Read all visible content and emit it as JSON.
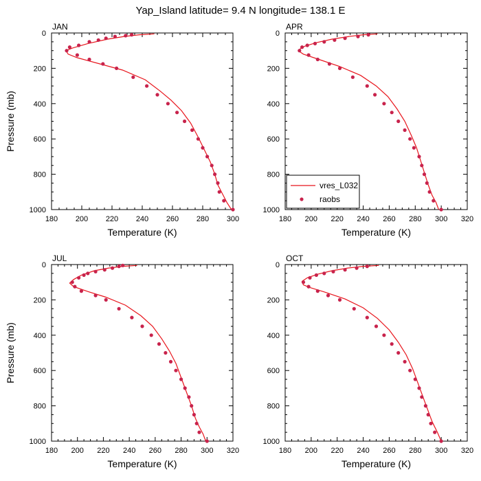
{
  "title": "Yap_Island  latitude= 9.4 N longitude= 138.1 E",
  "x_axis_title": "Temperature (K)",
  "y_axis_title": "Pressure (mb)",
  "legend": {
    "model_label": "vres_L032",
    "obs_label": "raobs"
  },
  "colors": {
    "model_line": "#e8141b",
    "obs_marker": "#c8234c"
  },
  "chart_data": [
    {
      "type": "line",
      "panel": "JAN",
      "xlim": [
        180,
        300
      ],
      "ylim": [
        1000,
        0
      ],
      "x_ticks": [
        "180",
        "200",
        "220",
        "240",
        "260",
        "280",
        "300"
      ],
      "y_ticks": [
        "0",
        "200",
        "400",
        "600",
        "800",
        "1000"
      ],
      "series": [
        {
          "name": "vres_L032",
          "kind": "line",
          "points": [
            [
              248,
              5
            ],
            [
              238,
              10
            ],
            [
              228,
              20
            ],
            [
              217,
              35
            ],
            [
              204,
              60
            ],
            [
              194,
              85
            ],
            [
              189.5,
              100
            ],
            [
              191,
              120
            ],
            [
              197,
              140
            ],
            [
              212,
              175
            ],
            [
              227,
              210
            ],
            [
              242,
              265
            ],
            [
              252,
              330
            ],
            [
              259,
              380
            ],
            [
              266,
              440
            ],
            [
              272,
              510
            ],
            [
              277,
              590
            ],
            [
              281,
              660
            ],
            [
              285,
              730
            ],
            [
              288,
              800
            ],
            [
              290,
              860
            ],
            [
              293,
              910
            ],
            [
              296,
              960
            ],
            [
              299,
              1000
            ]
          ]
        },
        {
          "name": "raobs",
          "kind": "markers",
          "points": [
            [
              233,
              10
            ],
            [
              229,
              15
            ],
            [
              222,
              20
            ],
            [
              216,
              30
            ],
            [
              211,
              40
            ],
            [
              205,
              50
            ],
            [
              198,
              70
            ],
            [
              192,
              80
            ],
            [
              190,
              100
            ],
            [
              197,
              125
            ],
            [
              205,
              150
            ],
            [
              214,
              175
            ],
            [
              223,
              200
            ],
            [
              234,
              250
            ],
            [
              243,
              300
            ],
            [
              250,
              350
            ],
            [
              257,
              400
            ],
            [
              263,
              450
            ],
            [
              268,
              500
            ],
            [
              273,
              550
            ],
            [
              277,
              600
            ],
            [
              280,
              650
            ],
            [
              283,
              700
            ],
            [
              286,
              750
            ],
            [
              288,
              800
            ],
            [
              290,
              850
            ],
            [
              291,
              900
            ],
            [
              294,
              950
            ],
            [
              300,
              1000
            ]
          ]
        }
      ]
    },
    {
      "type": "line",
      "panel": "APR",
      "xlim": [
        180,
        320
      ],
      "ylim": [
        1000,
        0
      ],
      "x_ticks": [
        "180",
        "200",
        "220",
        "240",
        "260",
        "280",
        "300",
        "320"
      ],
      "y_ticks": [
        "0",
        "200",
        "400",
        "600",
        "800",
        "1000"
      ],
      "show_legend": true,
      "series": [
        {
          "name": "vres_L032",
          "kind": "line",
          "points": [
            [
              251,
              5
            ],
            [
              240,
              10
            ],
            [
              229,
              20
            ],
            [
              216,
              35
            ],
            [
              204,
              55
            ],
            [
              195,
              75
            ],
            [
              191.5,
              90
            ],
            [
              191,
              105
            ],
            [
              194,
              120
            ],
            [
              206,
              150
            ],
            [
              222,
              190
            ],
            [
              238,
              240
            ],
            [
              250,
              300
            ],
            [
              259,
              360
            ],
            [
              266,
              430
            ],
            [
              272,
              500
            ],
            [
              277,
              580
            ],
            [
              281,
              650
            ],
            [
              284,
              720
            ],
            [
              287,
              790
            ],
            [
              290,
              860
            ],
            [
              293,
              920
            ],
            [
              296,
              960
            ],
            [
              298,
              1000
            ]
          ]
        },
        {
          "name": "raobs",
          "kind": "markers",
          "points": [
            [
              244,
              10
            ],
            [
              236,
              20
            ],
            [
              226,
              30
            ],
            [
              218,
              40
            ],
            [
              210,
              50
            ],
            [
              203,
              60
            ],
            [
              197,
              70
            ],
            [
              193,
              80
            ],
            [
              191,
              100
            ],
            [
              198,
              125
            ],
            [
              205,
              150
            ],
            [
              214,
              175
            ],
            [
              222,
              200
            ],
            [
              232,
              250
            ],
            [
              243,
              300
            ],
            [
              249,
              350
            ],
            [
              256,
              400
            ],
            [
              262,
              450
            ],
            [
              267,
              500
            ],
            [
              272,
              550
            ],
            [
              276,
              600
            ],
            [
              279,
              650
            ],
            [
              283,
              700
            ],
            [
              285,
              750
            ],
            [
              287,
              800
            ],
            [
              289,
              850
            ],
            [
              291,
              900
            ],
            [
              294,
              950
            ],
            [
              300,
              1000
            ]
          ]
        }
      ]
    },
    {
      "type": "line",
      "panel": "JUL",
      "xlim": [
        180,
        320
      ],
      "ylim": [
        1000,
        0
      ],
      "x_ticks": [
        "180",
        "200",
        "220",
        "240",
        "260",
        "280",
        "300",
        "320"
      ],
      "y_ticks": [
        "0",
        "200",
        "400",
        "600",
        "800",
        "1000"
      ],
      "series": [
        {
          "name": "vres_L032",
          "kind": "line",
          "points": [
            [
              246,
              5
            ],
            [
              235,
              10
            ],
            [
              224,
              20
            ],
            [
              213,
              35
            ],
            [
              203,
              60
            ],
            [
              197,
              85
            ],
            [
              194,
              105
            ],
            [
              197,
              125
            ],
            [
              207,
              150
            ],
            [
              222,
              185
            ],
            [
              237,
              230
            ],
            [
              249,
              290
            ],
            [
              258,
              350
            ],
            [
              265,
              420
            ],
            [
              271,
              490
            ],
            [
              276,
              560
            ],
            [
              280,
              640
            ],
            [
              284,
              720
            ],
            [
              288,
              800
            ],
            [
              291,
              870
            ],
            [
              294,
              920
            ],
            [
              297,
              960
            ],
            [
              299,
              1000
            ]
          ]
        },
        {
          "name": "raobs",
          "kind": "markers",
          "points": [
            [
              235,
              5
            ],
            [
              232,
              10
            ],
            [
              227,
              20
            ],
            [
              221,
              30
            ],
            [
              214,
              40
            ],
            [
              208,
              50
            ],
            [
              205,
              60
            ],
            [
              201,
              75
            ],
            [
              196,
              100
            ],
            [
              198,
              125
            ],
            [
              203,
              150
            ],
            [
              214,
              175
            ],
            [
              222,
              200
            ],
            [
              232,
              250
            ],
            [
              242,
              300
            ],
            [
              250,
              350
            ],
            [
              257,
              400
            ],
            [
              263,
              450
            ],
            [
              268,
              500
            ],
            [
              272,
              550
            ],
            [
              276,
              600
            ],
            [
              280,
              650
            ],
            [
              283,
              700
            ],
            [
              286,
              750
            ],
            [
              288,
              800
            ],
            [
              290,
              850
            ],
            [
              292,
              900
            ],
            [
              294,
              950
            ],
            [
              300,
              1000
            ]
          ]
        }
      ]
    },
    {
      "type": "line",
      "panel": "OCT",
      "xlim": [
        180,
        320
      ],
      "ylim": [
        1000,
        0
      ],
      "x_ticks": [
        "180",
        "200",
        "220",
        "240",
        "260",
        "280",
        "300",
        "320"
      ],
      "y_ticks": [
        "0",
        "200",
        "400",
        "600",
        "800",
        "1000"
      ],
      "series": [
        {
          "name": "vres_L032",
          "kind": "line",
          "points": [
            [
              252,
              5
            ],
            [
              240,
              10
            ],
            [
              228,
              20
            ],
            [
              216,
              35
            ],
            [
              205,
              55
            ],
            [
              197,
              75
            ],
            [
              193,
              95
            ],
            [
              194,
              115
            ],
            [
              199,
              130
            ],
            [
              210,
              155
            ],
            [
              226,
              195
            ],
            [
              240,
              245
            ],
            [
              251,
              305
            ],
            [
              260,
              370
            ],
            [
              267,
              440
            ],
            [
              273,
              510
            ],
            [
              278,
              590
            ],
            [
              282,
              670
            ],
            [
              286,
              750
            ],
            [
              290,
              830
            ],
            [
              293,
              890
            ],
            [
              297,
              950
            ],
            [
              300,
              1000
            ]
          ]
        },
        {
          "name": "raobs",
          "kind": "markers",
          "points": [
            [
              243,
              10
            ],
            [
              235,
              20
            ],
            [
              226,
              30
            ],
            [
              217,
              40
            ],
            [
              210,
              50
            ],
            [
              204,
              60
            ],
            [
              199,
              75
            ],
            [
              194,
              100
            ],
            [
              198,
              125
            ],
            [
              205,
              150
            ],
            [
              213,
              175
            ],
            [
              222,
              200
            ],
            [
              233,
              250
            ],
            [
              243,
              300
            ],
            [
              250,
              350
            ],
            [
              256,
              400
            ],
            [
              262,
              450
            ],
            [
              267,
              500
            ],
            [
              272,
              550
            ],
            [
              276,
              600
            ],
            [
              280,
              650
            ],
            [
              283,
              700
            ],
            [
              285,
              750
            ],
            [
              288,
              800
            ],
            [
              290,
              850
            ],
            [
              292,
              900
            ],
            [
              295,
              950
            ],
            [
              300,
              1000
            ]
          ]
        }
      ]
    }
  ]
}
